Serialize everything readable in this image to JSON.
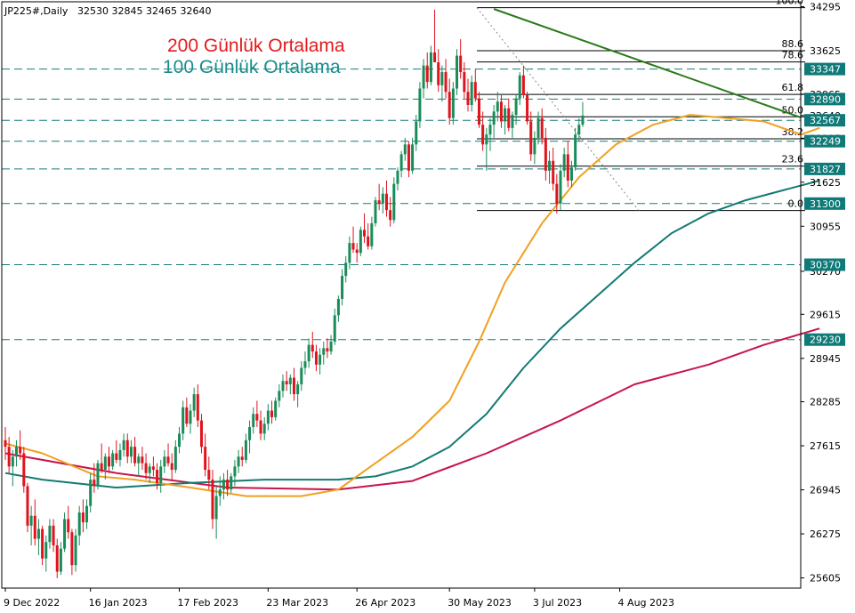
{
  "header": {
    "symbol": "JP225#,Daily",
    "ohlc": "32530 32845 32465 32640"
  },
  "annotations": {
    "ma200": "200 Günlük Ortalama",
    "ma100": "100 Günlük Ortalama"
  },
  "colors": {
    "up": "#1a8c5a",
    "down": "#e0141e",
    "ma50": "#f0a020",
    "ma100": "#127a72",
    "ma200": "#c8144a",
    "trendline": "#2a7a1a",
    "level_line": "#1a7a7a",
    "badge": "#0f7a78"
  },
  "chart_data": {
    "type": "candlestick",
    "title": "",
    "xlabel": "",
    "ylabel": "",
    "ylim": [
      25450,
      34370
    ],
    "grid": false,
    "x_ticks": [
      "9 Dec 2022",
      "16 Jan 2023",
      "17 Feb 2023",
      "23 Mar 2023",
      "26 Apr 2023",
      "30 May 2023",
      "3 Jul 2023",
      "4 Aug 2023"
    ],
    "y_ticks": [
      34295,
      33625,
      32965,
      32640,
      32295,
      31625,
      30955,
      30270,
      29615,
      28945,
      28285,
      27615,
      26945,
      26275,
      25605
    ],
    "horizontal_levels": [
      33347,
      32890,
      32567,
      32249,
      31827,
      31300,
      30370,
      29230
    ],
    "fibonacci": {
      "levels": [
        {
          "label": "100.0",
          "value": 34280
        },
        {
          "label": "88.6",
          "value": 33625
        },
        {
          "label": "78.6",
          "value": 33455
        },
        {
          "label": "61.8",
          "value": 32960
        },
        {
          "label": "50.0",
          "value": 32620
        },
        {
          "label": "38.2",
          "value": 32285
        },
        {
          "label": "23.6",
          "value": 31870
        },
        {
          "label": "0.0",
          "value": 31195
        }
      ]
    },
    "trendline": {
      "from": [
        132,
        34260
      ],
      "to": [
        231,
        32610
      ]
    },
    "series": [
      {
        "name": "200 Günlük Ortalama",
        "x": [
          0,
          30,
          60,
          90,
          110,
          130,
          150,
          170,
          190,
          205,
          220
        ],
        "values": [
          27500,
          27200,
          26980,
          26950,
          27080,
          27500,
          28000,
          28550,
          28850,
          29150,
          29400
        ]
      },
      {
        "name": "100 Günlük Ortalama",
        "x": [
          0,
          10,
          30,
          50,
          70,
          90,
          100,
          110,
          120,
          130,
          140,
          150,
          160,
          170,
          180,
          190,
          200,
          210,
          220
        ],
        "values": [
          27200,
          27100,
          26980,
          27050,
          27100,
          27100,
          27150,
          27300,
          27600,
          28100,
          28800,
          29400,
          29900,
          30400,
          30850,
          31150,
          31350,
          31500,
          31650
        ]
      },
      {
        "x": [
          0,
          10,
          25,
          35,
          50,
          65,
          80,
          90,
          100,
          110,
          120,
          128,
          135,
          145,
          155,
          165,
          175,
          185,
          195,
          205,
          215,
          220
        ],
        "values": [
          27650,
          27500,
          27150,
          27100,
          26980,
          26850,
          26850,
          26950,
          27350,
          27750,
          28300,
          29200,
          30100,
          31000,
          31700,
          32200,
          32500,
          32650,
          32600,
          32550,
          32350,
          32450
        ]
      }
    ],
    "candles": [
      [
        27700,
        27900,
        27400,
        27600
      ],
      [
        27600,
        27750,
        27200,
        27300
      ],
      [
        27300,
        27550,
        27000,
        27450
      ],
      [
        27450,
        27700,
        27300,
        27600
      ],
      [
        27600,
        27850,
        27400,
        27500
      ],
      [
        27500,
        27600,
        26900,
        27000
      ],
      [
        27000,
        27050,
        26300,
        26400
      ],
      [
        26400,
        26700,
        26100,
        26550
      ],
      [
        26550,
        26800,
        26100,
        26200
      ],
      [
        26200,
        26500,
        25950,
        26350
      ],
      [
        26350,
        26400,
        25800,
        25900
      ],
      [
        25900,
        26250,
        25700,
        26150
      ],
      [
        26150,
        26500,
        26050,
        26400
      ],
      [
        26400,
        26500,
        26000,
        26100
      ],
      [
        26100,
        26200,
        25600,
        25700
      ],
      [
        25700,
        26150,
        25650,
        26050
      ],
      [
        26050,
        26600,
        26000,
        26500
      ],
      [
        26500,
        26700,
        26200,
        26300
      ],
      [
        26300,
        26350,
        25650,
        25800
      ],
      [
        25800,
        26350,
        25700,
        26250
      ],
      [
        26250,
        26700,
        26100,
        26600
      ],
      [
        26600,
        26800,
        26300,
        26450
      ],
      [
        26450,
        26800,
        26350,
        26700
      ],
      [
        26700,
        27200,
        26600,
        27100
      ],
      [
        27100,
        27350,
        26900,
        27000
      ],
      [
        27000,
        27400,
        26950,
        27350
      ],
      [
        27350,
        27650,
        27200,
        27250
      ],
      [
        27250,
        27500,
        27100,
        27450
      ],
      [
        27450,
        27600,
        27200,
        27300
      ],
      [
        27300,
        27550,
        27250,
        27500
      ],
      [
        27500,
        27700,
        27350,
        27400
      ],
      [
        27400,
        27650,
        27300,
        27550
      ],
      [
        27550,
        27800,
        27450,
        27700
      ],
      [
        27700,
        27800,
        27350,
        27450
      ],
      [
        27450,
        27700,
        27350,
        27600
      ],
      [
        27600,
        27750,
        27300,
        27350
      ],
      [
        27350,
        27500,
        27150,
        27450
      ],
      [
        27450,
        27600,
        27250,
        27350
      ],
      [
        27350,
        27500,
        27100,
        27200
      ],
      [
        27200,
        27350,
        27050,
        27300
      ],
      [
        27300,
        27450,
        27150,
        27250
      ],
      [
        27250,
        27350,
        26950,
        27050
      ],
      [
        27050,
        27400,
        26900,
        27300
      ],
      [
        27300,
        27550,
        27200,
        27450
      ],
      [
        27450,
        27650,
        27300,
        27350
      ],
      [
        27350,
        27500,
        27100,
        27250
      ],
      [
        27250,
        27700,
        27200,
        27600
      ],
      [
        27600,
        27900,
        27500,
        27800
      ],
      [
        27800,
        28300,
        27700,
        28200
      ],
      [
        28200,
        28350,
        27900,
        27950
      ],
      [
        27950,
        28250,
        27800,
        28150
      ],
      [
        28150,
        28500,
        28050,
        28400
      ],
      [
        28400,
        28550,
        27900,
        28000
      ],
      [
        28000,
        28100,
        27500,
        27600
      ],
      [
        27600,
        27800,
        27150,
        27250
      ],
      [
        27250,
        27450,
        26950,
        27100
      ],
      [
        27100,
        27250,
        26350,
        26500
      ],
      [
        26500,
        27000,
        26200,
        26850
      ],
      [
        26850,
        27150,
        26700,
        26950
      ],
      [
        26950,
        27200,
        26800,
        27100
      ],
      [
        27100,
        27250,
        26850,
        26950
      ],
      [
        26950,
        27200,
        26900,
        27150
      ],
      [
        27150,
        27400,
        27000,
        27300
      ],
      [
        27300,
        27550,
        27200,
        27450
      ],
      [
        27450,
        27600,
        27300,
        27400
      ],
      [
        27400,
        27800,
        27350,
        27700
      ],
      [
        27700,
        28000,
        27500,
        27900
      ],
      [
        27900,
        28200,
        27800,
        28100
      ],
      [
        28100,
        28300,
        27900,
        28000
      ],
      [
        28000,
        28150,
        27700,
        27800
      ],
      [
        27800,
        28050,
        27700,
        27950
      ],
      [
        27950,
        28250,
        27850,
        28150
      ],
      [
        28150,
        28300,
        27950,
        28050
      ],
      [
        28050,
        28350,
        28000,
        28300
      ],
      [
        28300,
        28550,
        28200,
        28450
      ],
      [
        28450,
        28700,
        28350,
        28600
      ],
      [
        28600,
        28750,
        28450,
        28550
      ],
      [
        28550,
        28700,
        28400,
        28650
      ],
      [
        28650,
        28800,
        28300,
        28400
      ],
      [
        28400,
        28600,
        28200,
        28550
      ],
      [
        28550,
        28900,
        28450,
        28800
      ],
      [
        28800,
        29050,
        28700,
        28900
      ],
      [
        28900,
        29250,
        28800,
        29150
      ],
      [
        29150,
        29350,
        28950,
        29050
      ],
      [
        29050,
        29150,
        28750,
        28850
      ],
      [
        28850,
        29100,
        28700,
        29000
      ],
      [
        29000,
        29200,
        28850,
        29100
      ],
      [
        29100,
        29250,
        28950,
        29050
      ],
      [
        29050,
        29300,
        29000,
        29200
      ],
      [
        29200,
        29700,
        29150,
        29600
      ],
      [
        29600,
        29900,
        29500,
        29850
      ],
      [
        29850,
        30300,
        29750,
        30200
      ],
      [
        30200,
        30500,
        30100,
        30400
      ],
      [
        30400,
        30800,
        30300,
        30700
      ],
      [
        30700,
        30950,
        30550,
        30600
      ],
      [
        30600,
        30700,
        30400,
        30550
      ],
      [
        30550,
        30950,
        30500,
        30900
      ],
      [
        30900,
        31150,
        30700,
        30800
      ],
      [
        30800,
        31000,
        30600,
        30650
      ],
      [
        30650,
        31100,
        30600,
        31000
      ],
      [
        31000,
        31400,
        30950,
        31350
      ],
      [
        31350,
        31600,
        31200,
        31300
      ],
      [
        31300,
        31550,
        31150,
        31450
      ],
      [
        31450,
        31650,
        31100,
        31200
      ],
      [
        31200,
        31400,
        30950,
        31050
      ],
      [
        31050,
        31700,
        31000,
        31600
      ],
      [
        31600,
        31850,
        31500,
        31800
      ],
      [
        31800,
        32100,
        31700,
        32050
      ],
      [
        32050,
        32300,
        31950,
        32200
      ],
      [
        32200,
        32250,
        31700,
        31800
      ],
      [
        31800,
        32300,
        31750,
        32200
      ],
      [
        32200,
        32650,
        32100,
        32550
      ],
      [
        32550,
        33150,
        32450,
        33050
      ],
      [
        33050,
        33500,
        32900,
        33400
      ],
      [
        33400,
        33600,
        33050,
        33150
      ],
      [
        33150,
        33700,
        33100,
        33600
      ],
      [
        33600,
        34250,
        33500,
        33450
      ],
      [
        33450,
        33650,
        33000,
        33100
      ],
      [
        33100,
        33400,
        32850,
        33300
      ],
      [
        33300,
        33500,
        32900,
        33000
      ],
      [
        33000,
        33200,
        32500,
        32600
      ],
      [
        32600,
        33150,
        32500,
        33050
      ],
      [
        33050,
        33650,
        32950,
        33550
      ],
      [
        33550,
        33800,
        33200,
        33300
      ],
      [
        33300,
        33450,
        32900,
        33000
      ],
      [
        33000,
        33200,
        32700,
        32800
      ],
      [
        32800,
        33250,
        32700,
        33150
      ],
      [
        33150,
        33350,
        32850,
        32900
      ],
      [
        32900,
        33000,
        32450,
        32500
      ],
      [
        32500,
        32700,
        32100,
        32200
      ],
      [
        32200,
        32450,
        31800,
        32350
      ],
      [
        32350,
        32600,
        32100,
        32500
      ],
      [
        32500,
        32800,
        32300,
        32700
      ],
      [
        32700,
        33000,
        32550,
        32850
      ],
      [
        32850,
        32950,
        32450,
        32550
      ],
      [
        32550,
        32800,
        32350,
        32750
      ],
      [
        32750,
        32900,
        32400,
        32450
      ],
      [
        32450,
        32700,
        32300,
        32650
      ],
      [
        32650,
        32950,
        32500,
        32900
      ],
      [
        32900,
        33300,
        32800,
        33250
      ],
      [
        33250,
        33400,
        32900,
        32950
      ],
      [
        32950,
        33000,
        32500,
        32550
      ],
      [
        32550,
        32700,
        31950,
        32050
      ],
      [
        32050,
        32400,
        31900,
        32300
      ],
      [
        32300,
        32700,
        32200,
        32600
      ],
      [
        32600,
        32750,
        32200,
        32300
      ],
      [
        32300,
        32450,
        31650,
        31800
      ],
      [
        31800,
        32100,
        31600,
        31950
      ],
      [
        31950,
        32150,
        31500,
        31600
      ],
      [
        31600,
        31750,
        31150,
        31300
      ],
      [
        31300,
        31900,
        31200,
        31800
      ],
      [
        31800,
        32150,
        31700,
        32050
      ],
      [
        32050,
        32250,
        31550,
        31650
      ],
      [
        31650,
        31950,
        31550,
        31850
      ],
      [
        31850,
        32450,
        31800,
        32350
      ],
      [
        32350,
        32600,
        32250,
        32500
      ],
      [
        32500,
        32845,
        32465,
        32640
      ]
    ]
  }
}
